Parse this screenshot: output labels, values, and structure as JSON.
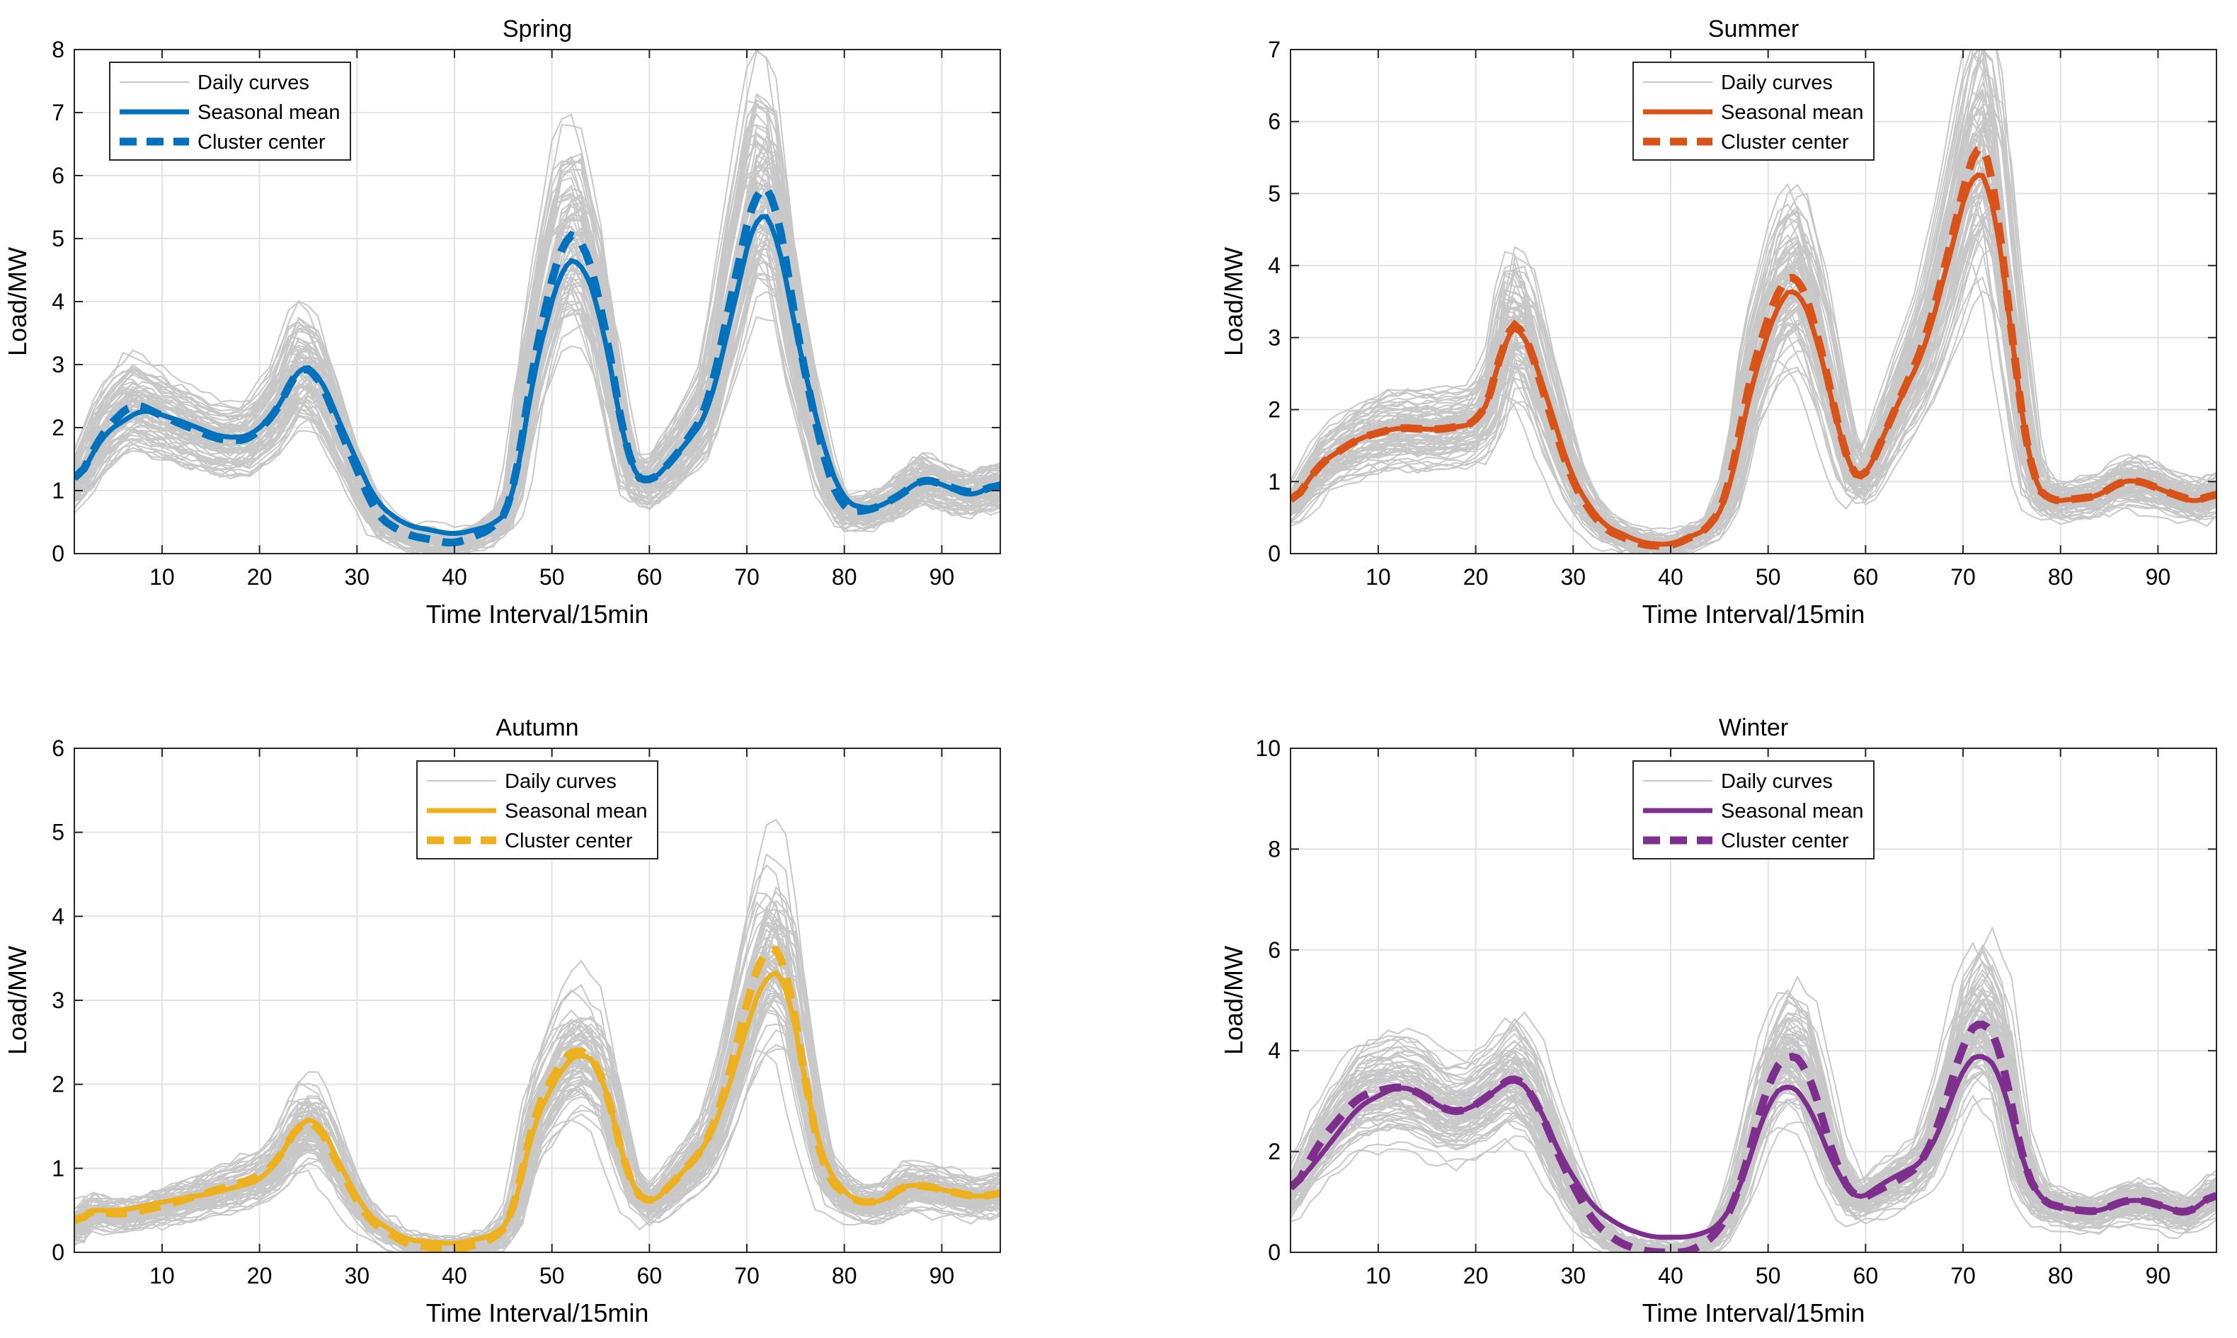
{
  "figure": {
    "xlabel": "Time Interval/15min",
    "ylabel": "Load/MW",
    "legend_labels": [
      "Daily curves",
      "Seasonal mean",
      "Cluster center"
    ]
  },
  "chart_data": [
    {
      "type": "line",
      "title": "Spring",
      "color": "#0072BD",
      "xlabel": "Time Interval/15min",
      "ylabel": "Load/MW",
      "xlim": [
        1,
        96
      ],
      "ylim": [
        0,
        8
      ],
      "xticks": [
        10,
        20,
        30,
        40,
        50,
        60,
        70,
        80,
        90
      ],
      "yticks": [
        0,
        1,
        2,
        3,
        4,
        5,
        6,
        7,
        8
      ],
      "legend_position": "top-left",
      "background_curves": 80,
      "mean_points": [
        [
          1,
          1.05
        ],
        [
          4,
          1.9
        ],
        [
          8,
          2.3
        ],
        [
          12,
          2.1
        ],
        [
          16,
          1.85
        ],
        [
          19,
          1.85
        ],
        [
          22,
          2.3
        ],
        [
          24,
          3.0
        ],
        [
          26,
          2.9
        ],
        [
          29,
          1.8
        ],
        [
          32,
          0.8
        ],
        [
          35,
          0.45
        ],
        [
          40,
          0.3
        ],
        [
          44,
          0.45
        ],
        [
          46,
          0.75
        ],
        [
          48,
          2.8
        ],
        [
          51,
          4.6
        ],
        [
          53,
          4.7
        ],
        [
          55,
          3.8
        ],
        [
          58,
          1.3
        ],
        [
          60,
          1.1
        ],
        [
          63,
          1.6
        ],
        [
          66,
          2.2
        ],
        [
          68,
          3.5
        ],
        [
          71,
          5.5
        ],
        [
          73,
          5.2
        ],
        [
          75,
          3.5
        ],
        [
          78,
          1.6
        ],
        [
          80,
          0.8
        ],
        [
          83,
          0.7
        ],
        [
          86,
          0.95
        ],
        [
          88,
          1.2
        ],
        [
          90,
          1.1
        ],
        [
          93,
          0.9
        ],
        [
          96,
          1.15
        ]
      ],
      "center_points": [
        [
          1,
          1.05
        ],
        [
          4,
          1.95
        ],
        [
          7,
          2.4
        ],
        [
          12,
          2.05
        ],
        [
          16,
          1.8
        ],
        [
          19,
          1.8
        ],
        [
          22,
          2.3
        ],
        [
          24,
          3.0
        ],
        [
          26,
          2.85
        ],
        [
          29,
          1.7
        ],
        [
          32,
          0.6
        ],
        [
          35,
          0.3
        ],
        [
          40,
          0.15
        ],
        [
          44,
          0.4
        ],
        [
          46,
          0.8
        ],
        [
          48,
          3.0
        ],
        [
          51,
          5.0
        ],
        [
          53,
          5.1
        ],
        [
          55,
          4.0
        ],
        [
          58,
          1.3
        ],
        [
          60,
          1.1
        ],
        [
          63,
          1.6
        ],
        [
          66,
          2.3
        ],
        [
          68,
          3.8
        ],
        [
          71,
          5.9
        ],
        [
          73,
          5.7
        ],
        [
          75,
          3.6
        ],
        [
          78,
          1.4
        ],
        [
          80,
          0.65
        ],
        [
          83,
          0.7
        ],
        [
          86,
          0.95
        ],
        [
          88,
          1.2
        ],
        [
          90,
          1.1
        ],
        [
          93,
          0.95
        ],
        [
          96,
          1.1
        ]
      ]
    },
    {
      "type": "line",
      "title": "Summer",
      "color": "#D95319",
      "xlabel": "Time Interval/15min",
      "ylabel": "Load/MW",
      "xlim": [
        1,
        96
      ],
      "ylim": [
        0,
        7
      ],
      "xticks": [
        10,
        20,
        30,
        40,
        50,
        60,
        70,
        80,
        90
      ],
      "yticks": [
        0,
        1,
        2,
        3,
        4,
        5,
        6,
        7
      ],
      "legend_position": "top-center",
      "background_curves": 80,
      "mean_points": [
        [
          1,
          0.65
        ],
        [
          4,
          1.25
        ],
        [
          8,
          1.6
        ],
        [
          12,
          1.75
        ],
        [
          16,
          1.72
        ],
        [
          20,
          1.8
        ],
        [
          22,
          2.3
        ],
        [
          23,
          3.15
        ],
        [
          25,
          3.1
        ],
        [
          27,
          2.3
        ],
        [
          30,
          1.0
        ],
        [
          33,
          0.4
        ],
        [
          37,
          0.15
        ],
        [
          40,
          0.12
        ],
        [
          44,
          0.35
        ],
        [
          46,
          0.8
        ],
        [
          48,
          2.2
        ],
        [
          51,
          3.5
        ],
        [
          53,
          3.75
        ],
        [
          55,
          3.0
        ],
        [
          58,
          1.3
        ],
        [
          59,
          1.0
        ],
        [
          60,
          1.05
        ],
        [
          63,
          2.0
        ],
        [
          66,
          2.8
        ],
        [
          68,
          3.8
        ],
        [
          71,
          5.4
        ],
        [
          73,
          5.1
        ],
        [
          75,
          3.0
        ],
        [
          77,
          1.0
        ],
        [
          79,
          0.72
        ],
        [
          84,
          0.8
        ],
        [
          86,
          1.0
        ],
        [
          88,
          1.02
        ],
        [
          91,
          0.85
        ],
        [
          94,
          0.7
        ],
        [
          96,
          0.85
        ]
      ],
      "center_points": [
        [
          1,
          0.65
        ],
        [
          4,
          1.25
        ],
        [
          8,
          1.6
        ],
        [
          12,
          1.75
        ],
        [
          16,
          1.72
        ],
        [
          20,
          1.8
        ],
        [
          22,
          2.3
        ],
        [
          23,
          3.2
        ],
        [
          25,
          3.15
        ],
        [
          27,
          2.2
        ],
        [
          30,
          0.95
        ],
        [
          33,
          0.35
        ],
        [
          37,
          0.12
        ],
        [
          40,
          0.1
        ],
        [
          44,
          0.35
        ],
        [
          46,
          0.85
        ],
        [
          48,
          2.4
        ],
        [
          51,
          3.7
        ],
        [
          53,
          3.95
        ],
        [
          55,
          3.1
        ],
        [
          58,
          1.3
        ],
        [
          59,
          1.0
        ],
        [
          60,
          1.05
        ],
        [
          63,
          2.0
        ],
        [
          66,
          2.9
        ],
        [
          68,
          3.9
        ],
        [
          71,
          5.6
        ],
        [
          72,
          5.8
        ],
        [
          73,
          5.4
        ],
        [
          75,
          3.0
        ],
        [
          77,
          1.0
        ],
        [
          79,
          0.72
        ],
        [
          84,
          0.8
        ],
        [
          86,
          1.0
        ],
        [
          88,
          1.02
        ],
        [
          91,
          0.85
        ],
        [
          94,
          0.72
        ],
        [
          96,
          0.85
        ]
      ]
    },
    {
      "type": "line",
      "title": "Autumn",
      "color": "#EDB120",
      "xlabel": "Time Interval/15min",
      "ylabel": "Load/MW",
      "xlim": [
        1,
        96
      ],
      "ylim": [
        0,
        6
      ],
      "xticks": [
        10,
        20,
        30,
        40,
        50,
        60,
        70,
        80,
        90
      ],
      "yticks": [
        0,
        1,
        2,
        3,
        4,
        5,
        6
      ],
      "legend_position": "top-center",
      "background_curves": 80,
      "mean_points": [
        [
          1,
          0.25
        ],
        [
          2,
          0.5
        ],
        [
          6,
          0.5
        ],
        [
          10,
          0.6
        ],
        [
          15,
          0.7
        ],
        [
          20,
          0.85
        ],
        [
          22,
          1.1
        ],
        [
          24,
          1.55
        ],
        [
          26,
          1.6
        ],
        [
          28,
          1.1
        ],
        [
          31,
          0.45
        ],
        [
          35,
          0.15
        ],
        [
          40,
          0.1
        ],
        [
          44,
          0.2
        ],
        [
          46,
          0.4
        ],
        [
          48,
          1.5
        ],
        [
          51,
          2.2
        ],
        [
          53,
          2.4
        ],
        [
          55,
          2.2
        ],
        [
          58,
          0.8
        ],
        [
          60,
          0.55
        ],
        [
          63,
          0.9
        ],
        [
          66,
          1.3
        ],
        [
          68,
          1.9
        ],
        [
          70,
          2.7
        ],
        [
          72,
          3.35
        ],
        [
          74,
          3.3
        ],
        [
          76,
          2.0
        ],
        [
          78,
          1.0
        ],
        [
          81,
          0.6
        ],
        [
          84,
          0.6
        ],
        [
          86,
          0.8
        ],
        [
          88,
          0.8
        ],
        [
          91,
          0.72
        ],
        [
          94,
          0.65
        ],
        [
          96,
          0.72
        ]
      ],
      "center_points": [
        [
          1,
          0.25
        ],
        [
          2,
          0.5
        ],
        [
          6,
          0.45
        ],
        [
          10,
          0.55
        ],
        [
          15,
          0.72
        ],
        [
          20,
          0.9
        ],
        [
          22,
          1.1
        ],
        [
          24,
          1.55
        ],
        [
          26,
          1.55
        ],
        [
          28,
          1.05
        ],
        [
          31,
          0.4
        ],
        [
          35,
          0.1
        ],
        [
          40,
          0.02
        ],
        [
          44,
          0.15
        ],
        [
          46,
          0.4
        ],
        [
          48,
          1.6
        ],
        [
          51,
          2.3
        ],
        [
          53,
          2.45
        ],
        [
          55,
          2.2
        ],
        [
          58,
          0.8
        ],
        [
          60,
          0.55
        ],
        [
          63,
          0.9
        ],
        [
          66,
          1.3
        ],
        [
          68,
          2.0
        ],
        [
          70,
          3.0
        ],
        [
          72,
          3.7
        ],
        [
          74,
          3.5
        ],
        [
          76,
          2.0
        ],
        [
          78,
          0.9
        ],
        [
          81,
          0.6
        ],
        [
          84,
          0.6
        ],
        [
          86,
          0.8
        ],
        [
          88,
          0.8
        ],
        [
          91,
          0.72
        ],
        [
          94,
          0.65
        ],
        [
          96,
          0.72
        ]
      ]
    },
    {
      "type": "line",
      "title": "Winter",
      "color": "#7E2F8E",
      "xlabel": "Time Interval/15min",
      "ylabel": "Load/MW",
      "xlim": [
        1,
        96
      ],
      "ylim": [
        0,
        10
      ],
      "xticks": [
        10,
        20,
        30,
        40,
        50,
        60,
        70,
        80,
        90
      ],
      "yticks": [
        0,
        2,
        4,
        6,
        8,
        10
      ],
      "legend_position": "top-center",
      "background_curves": 80,
      "mean_points": [
        [
          1,
          1.2
        ],
        [
          4,
          1.9
        ],
        [
          8,
          2.9
        ],
        [
          12,
          3.3
        ],
        [
          14,
          3.2
        ],
        [
          17,
          2.8
        ],
        [
          19,
          2.8
        ],
        [
          22,
          3.2
        ],
        [
          24,
          3.5
        ],
        [
          26,
          3.1
        ],
        [
          29,
          1.8
        ],
        [
          32,
          0.9
        ],
        [
          35,
          0.5
        ],
        [
          38,
          0.3
        ],
        [
          42,
          0.3
        ],
        [
          45,
          0.5
        ],
        [
          47,
          1.2
        ],
        [
          50,
          3.0
        ],
        [
          52,
          3.4
        ],
        [
          54,
          3.0
        ],
        [
          57,
          1.6
        ],
        [
          59,
          1.0
        ],
        [
          62,
          1.4
        ],
        [
          64,
          1.6
        ],
        [
          66,
          1.8
        ],
        [
          68,
          2.6
        ],
        [
          70,
          3.7
        ],
        [
          72,
          4.0
        ],
        [
          74,
          3.5
        ],
        [
          76,
          1.8
        ],
        [
          78,
          1.0
        ],
        [
          81,
          0.85
        ],
        [
          84,
          0.8
        ],
        [
          86,
          1.0
        ],
        [
          88,
          1.05
        ],
        [
          90,
          0.95
        ],
        [
          93,
          0.75
        ],
        [
          96,
          1.2
        ]
      ],
      "center_points": [
        [
          1,
          1.1
        ],
        [
          4,
          2.2
        ],
        [
          8,
          3.1
        ],
        [
          12,
          3.3
        ],
        [
          14,
          3.2
        ],
        [
          17,
          2.8
        ],
        [
          19,
          2.8
        ],
        [
          22,
          3.2
        ],
        [
          24,
          3.55
        ],
        [
          26,
          3.1
        ],
        [
          29,
          1.7
        ],
        [
          32,
          0.6
        ],
        [
          35,
          0.15
        ],
        [
          38,
          0.0
        ],
        [
          42,
          0.0
        ],
        [
          45,
          0.4
        ],
        [
          47,
          1.2
        ],
        [
          50,
          3.4
        ],
        [
          52,
          4.0
        ],
        [
          54,
          3.7
        ],
        [
          57,
          1.7
        ],
        [
          59,
          1.0
        ],
        [
          62,
          1.3
        ],
        [
          64,
          1.5
        ],
        [
          66,
          1.8
        ],
        [
          68,
          2.8
        ],
        [
          70,
          4.2
        ],
        [
          72,
          4.7
        ],
        [
          74,
          4.0
        ],
        [
          76,
          1.8
        ],
        [
          78,
          1.0
        ],
        [
          81,
          0.85
        ],
        [
          84,
          0.8
        ],
        [
          86,
          1.0
        ],
        [
          88,
          1.05
        ],
        [
          90,
          0.95
        ],
        [
          93,
          0.75
        ],
        [
          96,
          1.2
        ]
      ]
    }
  ]
}
